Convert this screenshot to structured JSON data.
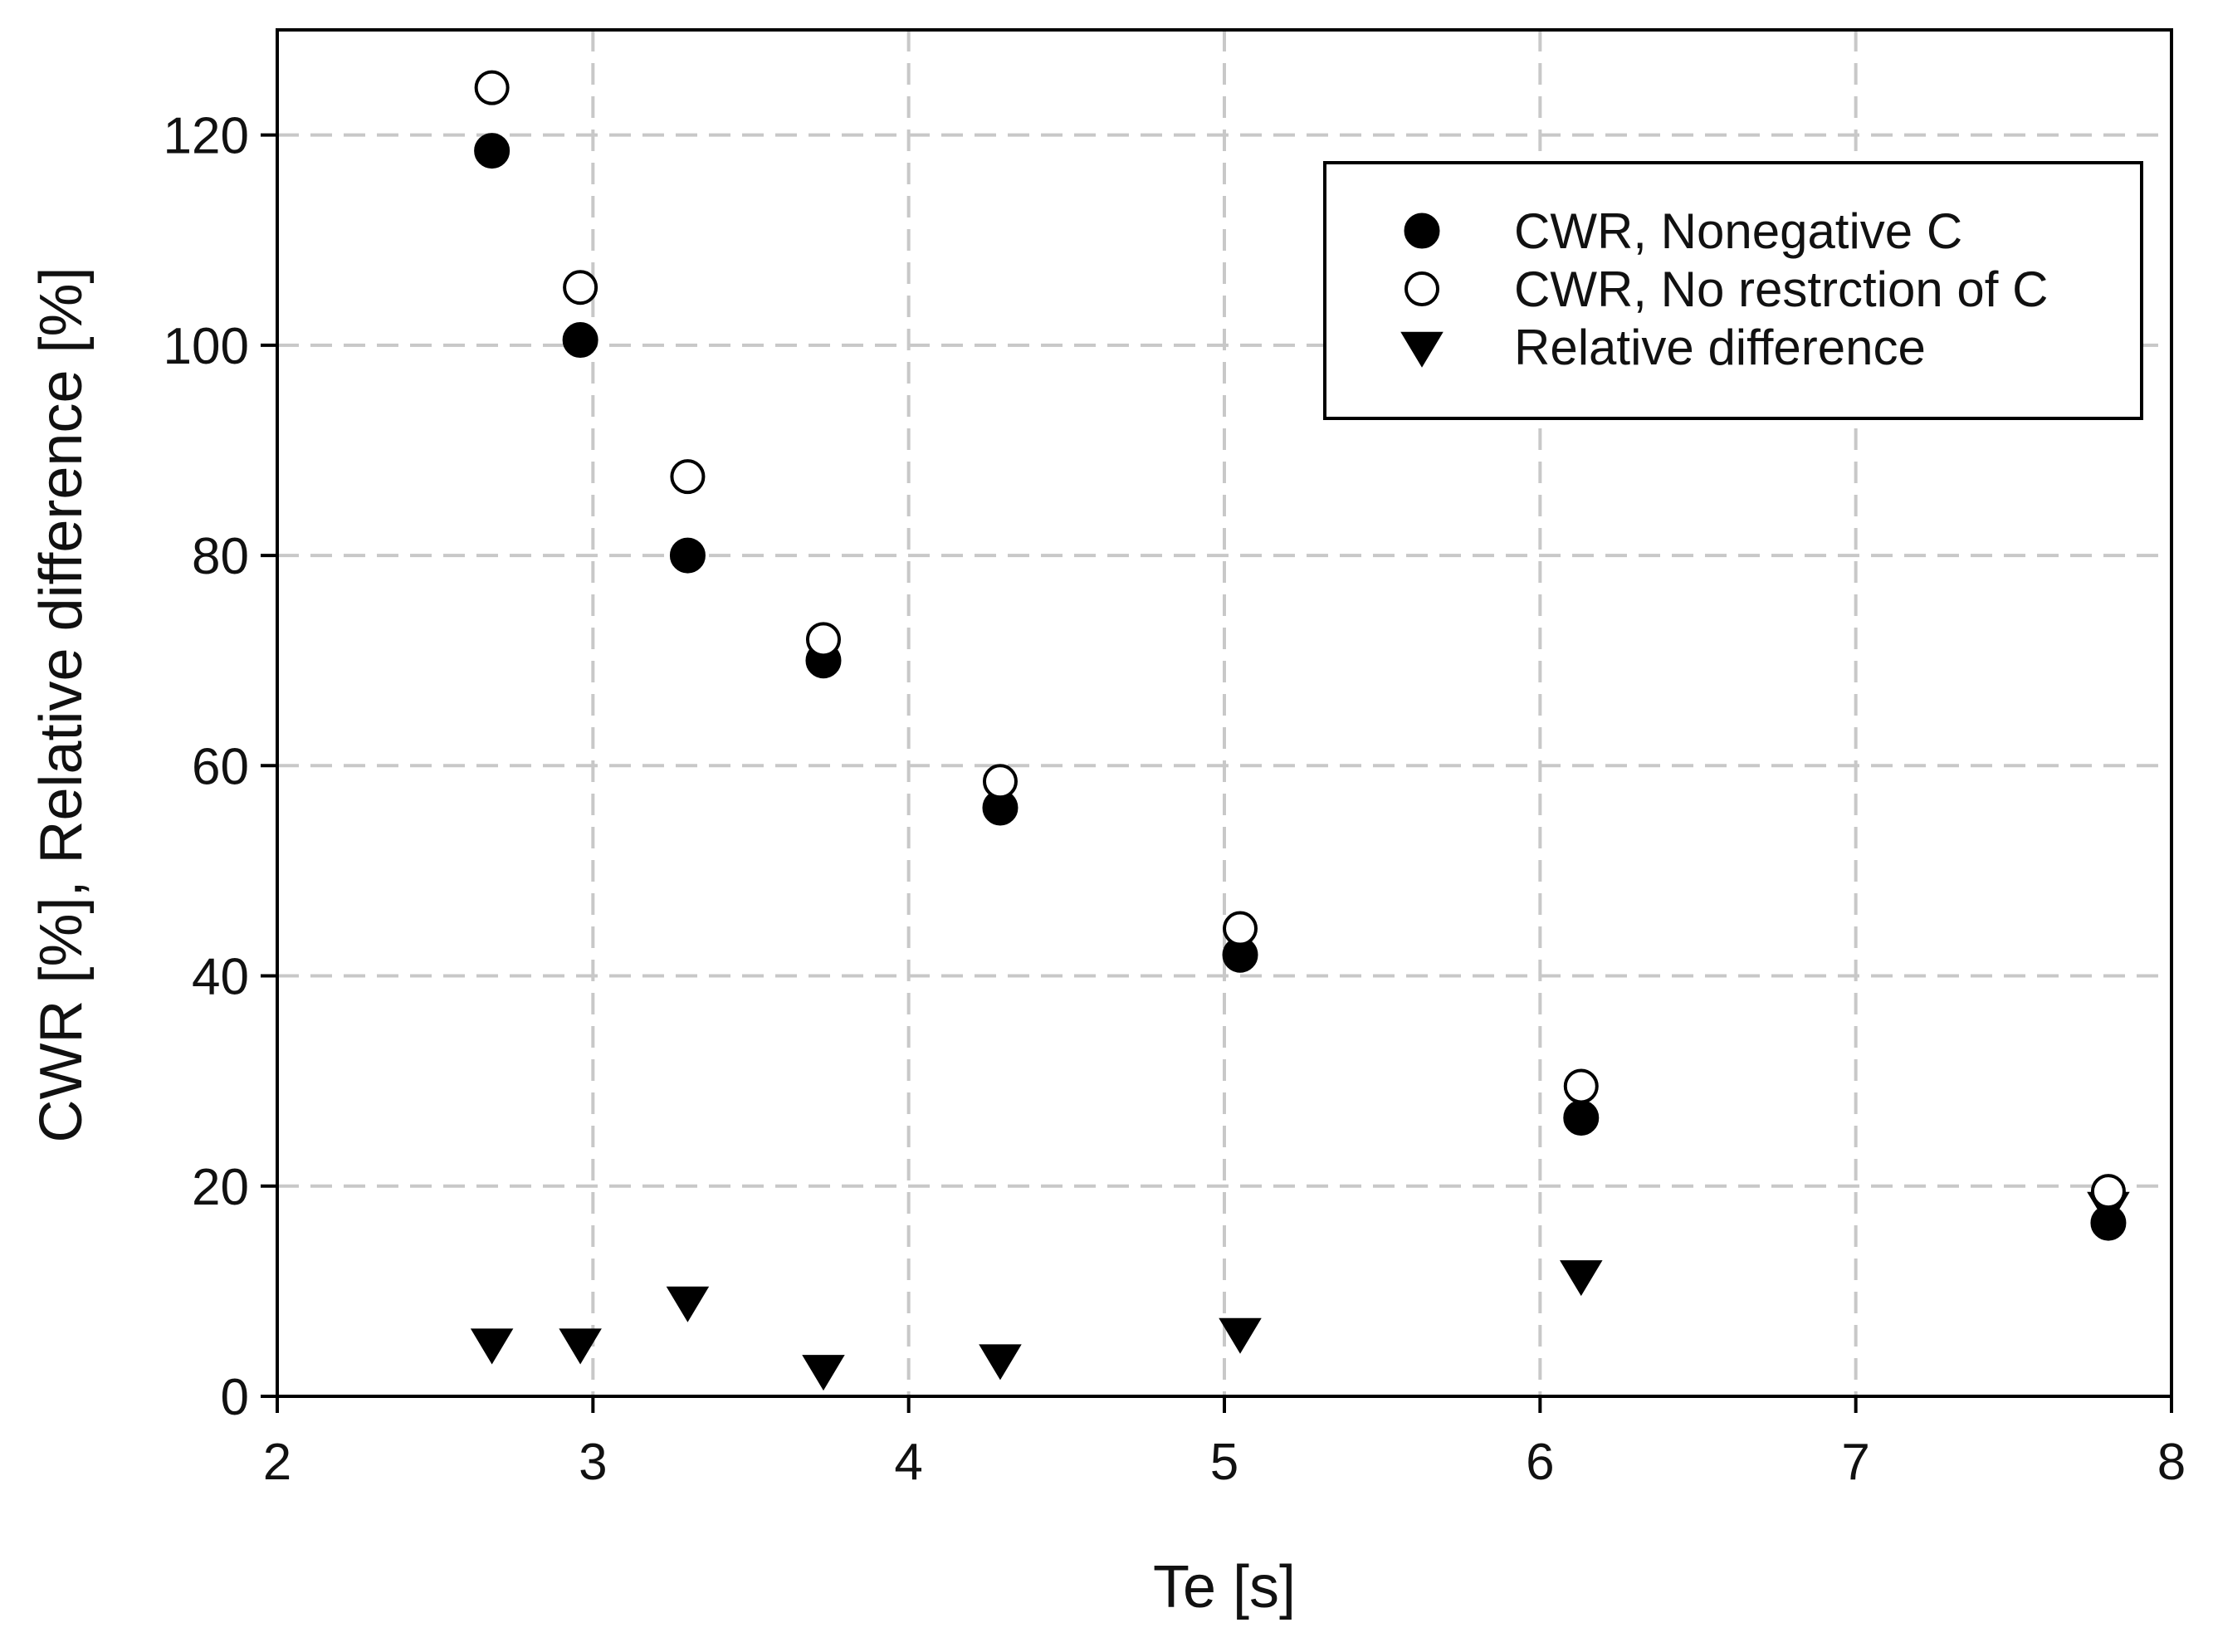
{
  "chart_data": {
    "type": "scatter",
    "title": "",
    "xlabel": "Te [s]",
    "ylabel": "CWR [%], Relative difference [%]",
    "xlim": [
      2,
      8
    ],
    "ylim": [
      0,
      130
    ],
    "xticks": [
      2,
      3,
      4,
      5,
      6,
      7,
      8
    ],
    "yticks": [
      0,
      20,
      40,
      60,
      80,
      100,
      120
    ],
    "grid": true,
    "legend_position": "top-right",
    "series": [
      {
        "name": "CWR, Nonegative C",
        "marker": "filled-circle",
        "color": "#000000",
        "points": [
          {
            "x": 2.68,
            "y": 118.5
          },
          {
            "x": 2.96,
            "y": 100.5
          },
          {
            "x": 3.3,
            "y": 80
          },
          {
            "x": 3.73,
            "y": 70
          },
          {
            "x": 4.29,
            "y": 56
          },
          {
            "x": 5.05,
            "y": 42
          },
          {
            "x": 6.13,
            "y": 26.5
          },
          {
            "x": 7.8,
            "y": 16.5
          }
        ]
      },
      {
        "name": "CWR, No restrction of C",
        "marker": "open-circle",
        "color": "#000000",
        "points": [
          {
            "x": 2.68,
            "y": 124.5
          },
          {
            "x": 2.96,
            "y": 105.5
          },
          {
            "x": 3.3,
            "y": 87.5
          },
          {
            "x": 3.73,
            "y": 72
          },
          {
            "x": 4.29,
            "y": 58.5
          },
          {
            "x": 5.05,
            "y": 44.5
          },
          {
            "x": 6.13,
            "y": 29.5
          },
          {
            "x": 7.8,
            "y": 19.5
          }
        ]
      },
      {
        "name": "Relative difference",
        "marker": "filled-triangle-down",
        "color": "#000000",
        "points": [
          {
            "x": 2.68,
            "y": 5
          },
          {
            "x": 2.96,
            "y": 5
          },
          {
            "x": 3.3,
            "y": 9
          },
          {
            "x": 3.73,
            "y": 2.5
          },
          {
            "x": 4.29,
            "y": 3.5
          },
          {
            "x": 5.05,
            "y": 6
          },
          {
            "x": 6.13,
            "y": 11.5
          },
          {
            "x": 7.8,
            "y": 18
          }
        ]
      }
    ]
  }
}
